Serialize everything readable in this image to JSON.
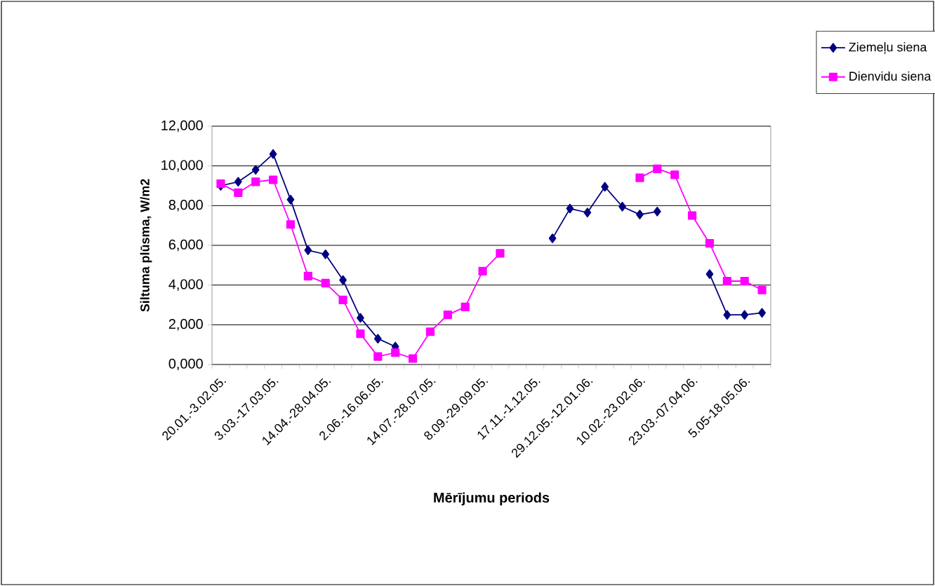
{
  "chart_data": {
    "type": "line",
    "xlabel": "Mērījumu periods",
    "ylabel": "Siltuma plūsma, W/m2",
    "categories": [
      "20.01.-3.02.05.",
      null,
      null,
      "3.03.-17.03.05.",
      null,
      null,
      "14.04.-28.04.05.",
      null,
      null,
      "2.06.-16.06.05.",
      null,
      null,
      "14.07.-28.07.05.",
      null,
      null,
      "8.09.-29.09.05.",
      null,
      null,
      "17.11.-1.12.05.",
      null,
      null,
      "29.12.05.-12.01.06.",
      null,
      null,
      "10.02.-23.02.06.",
      null,
      null,
      "23.03.-07.04.06.",
      null,
      null,
      "5.05-18.05.06.",
      null
    ],
    "series": [
      {
        "name": "Ziemeļu siena",
        "color": "#000080",
        "marker": "diamond",
        "values": [
          9000,
          9200,
          9800,
          10600,
          8300,
          5750,
          5550,
          4250,
          2350,
          1300,
          900,
          null,
          null,
          null,
          null,
          null,
          null,
          null,
          null,
          6350,
          7850,
          7650,
          8950,
          7950,
          7550,
          7700,
          null,
          null,
          4550,
          2500,
          2500,
          2600
        ]
      },
      {
        "name": "Dienvidu siena",
        "color": "#ff00ff",
        "marker": "square",
        "values": [
          9100,
          8650,
          9200,
          9300,
          7050,
          4450,
          4100,
          3250,
          1550,
          400,
          600,
          300,
          1650,
          2500,
          2900,
          4700,
          5600,
          null,
          null,
          null,
          null,
          null,
          null,
          null,
          9400,
          9850,
          9550,
          7500,
          6100,
          4200,
          4200,
          3750
        ]
      }
    ],
    "ylim": [
      0,
      12000
    ],
    "yticks": [
      {
        "value": 0,
        "label": "0,000"
      },
      {
        "value": 2000,
        "label": "2,000"
      },
      {
        "value": 4000,
        "label": "4,000"
      },
      {
        "value": 6000,
        "label": "6,000"
      },
      {
        "value": 8000,
        "label": "8,000"
      },
      {
        "value": 10000,
        "label": "10,000"
      },
      {
        "value": 12000,
        "label": "12,000"
      }
    ],
    "grid": "y",
    "legend": "top right",
    "line_style": "solid"
  }
}
